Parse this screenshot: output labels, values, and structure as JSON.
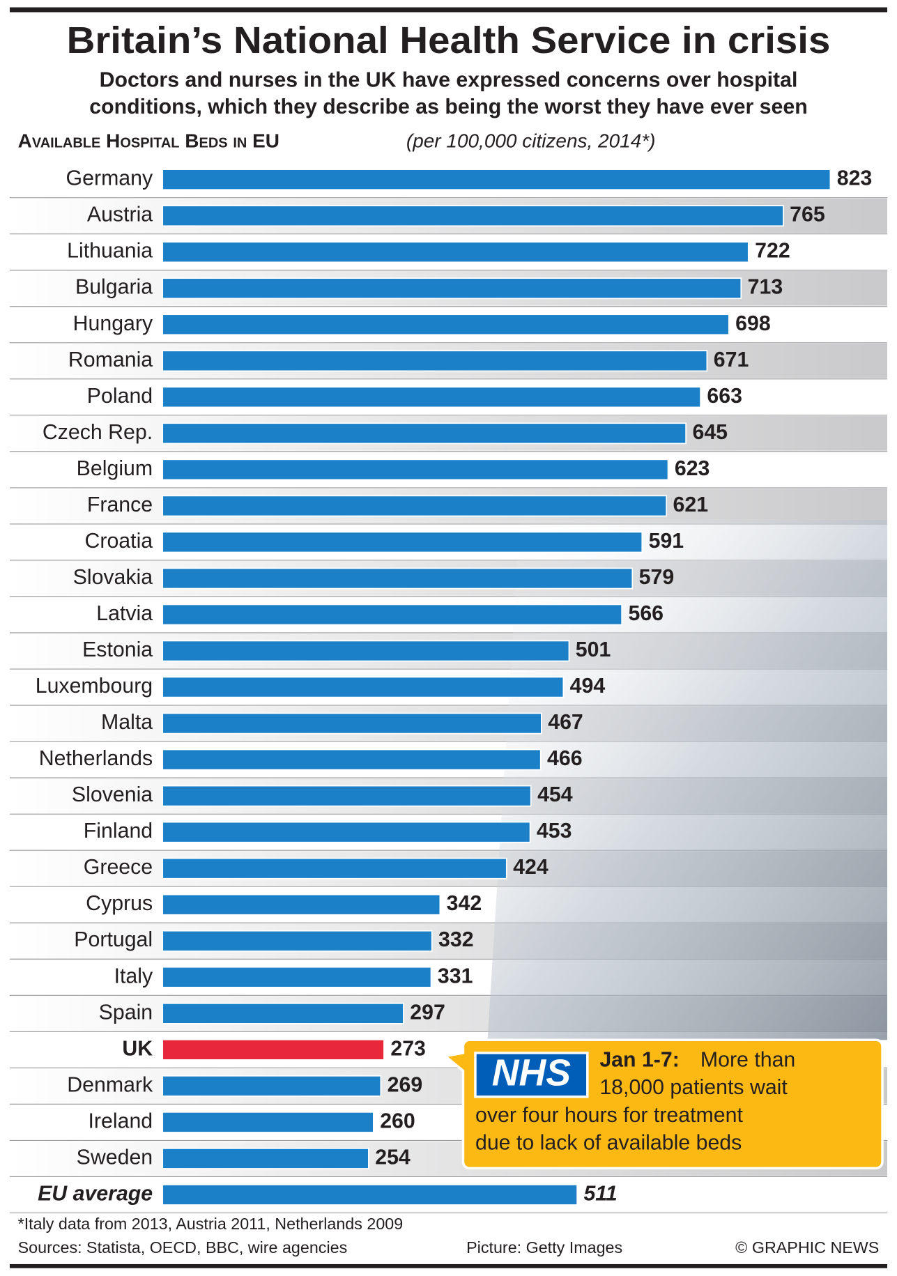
{
  "chart_data": {
    "type": "bar",
    "title": "Britain’s National Health Service in crisis",
    "subtitle": [
      "Doctors and nurses in the UK have expressed concerns over hospital",
      "conditions, which they describe as being the worst they have ever seen"
    ],
    "heading": "Available Hospital Beds in EU",
    "heading_note": "(per 100,000 citizens, 2014*)",
    "categories": [
      "Germany",
      "Austria",
      "Lithuania",
      "Bulgaria",
      "Hungary",
      "Romania",
      "Poland",
      "Czech Rep.",
      "Belgium",
      "France",
      "Croatia",
      "Slovakia",
      "Latvia",
      "Estonia",
      "Luxembourg",
      "Malta",
      "Netherlands",
      "Slovenia",
      "Finland",
      "Greece",
      "Cyprus",
      "Portugal",
      "Italy",
      "Spain",
      "UK",
      "Denmark",
      "Ireland",
      "Sweden",
      "EU average"
    ],
    "values": [
      823,
      765,
      722,
      713,
      698,
      671,
      663,
      645,
      623,
      621,
      591,
      579,
      566,
      501,
      494,
      467,
      466,
      454,
      453,
      424,
      342,
      332,
      331,
      297,
      273,
      269,
      260,
      254,
      511
    ],
    "color": "#1b80c8",
    "highlight": {
      "category": "UK",
      "color": "#e8273a"
    },
    "average": {
      "category": "EU average"
    }
  },
  "callout": {
    "logo": "NHS",
    "lead": "Jan 1-7:",
    "lines": [
      "More than",
      "18,000 patients wait",
      "over four hours for treatment",
      "due to lack of available beds"
    ]
  },
  "footer": {
    "footnote": "*Italy data from 2013, Austria 2011, Netherlands 2009",
    "sources": "Sources: Statista, OECD, BBC, wire agencies",
    "picture": "Picture: Getty Images",
    "copyright": "© GRAPHIC NEWS"
  }
}
